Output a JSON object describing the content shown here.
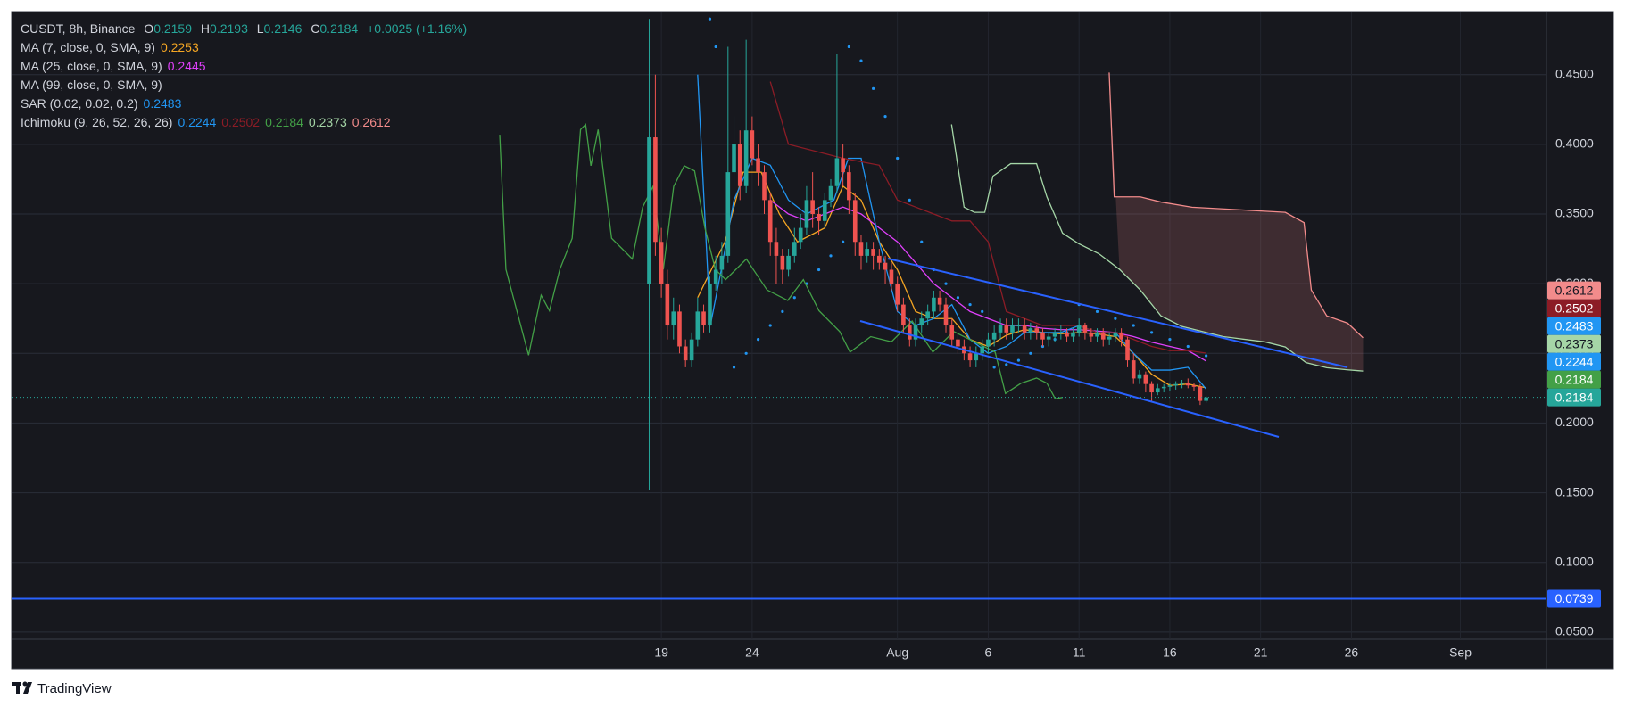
{
  "chart_data": {
    "type": "candlestick",
    "title": "CUSDT, 8h, Binance",
    "ohlc_labels": [
      "O",
      "H",
      "L",
      "C"
    ],
    "change": "+0.0025 (+1.16%)",
    "up_color": "#26a69a",
    "down_color": "#ef5350",
    "candles": {
      "x": [
        -0.67,
        -0.33,
        0,
        0.33,
        0.67,
        1,
        1.33,
        1.67,
        2,
        2.33,
        2.67,
        3,
        3.33,
        3.67,
        4,
        4.33,
        4.67,
        5,
        5.33,
        5.67,
        6,
        6.33,
        6.67,
        7,
        7.33,
        7.67,
        8,
        8.33,
        8.67,
        9,
        9.33,
        9.67,
        10,
        10.33,
        10.67,
        11,
        11.33,
        11.67,
        12,
        12.33,
        12.67,
        13,
        13.33,
        13.67,
        14,
        14.33,
        14.67,
        15,
        15.33,
        15.67,
        16,
        16.33,
        16.67,
        17,
        17.33,
        17.67,
        18,
        18.33,
        18.67,
        19,
        19.33,
        19.67,
        20,
        20.33,
        20.67,
        21,
        21.33,
        21.67,
        22,
        22.33,
        22.67,
        23,
        23.33,
        23.67,
        24,
        24.33,
        24.67,
        25,
        25.33,
        25.67,
        26,
        26.33,
        26.67,
        27,
        27.33,
        27.67,
        28,
        28.33,
        28.67,
        29,
        29.33,
        29.67,
        30
      ],
      "open": [
        0.3,
        0.405,
        0.33,
        0.3,
        0.27,
        0.28,
        0.255,
        0.245,
        0.26,
        0.28,
        0.27,
        0.3,
        0.31,
        0.32,
        0.38,
        0.4,
        0.37,
        0.41,
        0.39,
        0.38,
        0.36,
        0.33,
        0.32,
        0.31,
        0.32,
        0.33,
        0.34,
        0.36,
        0.35,
        0.345,
        0.36,
        0.37,
        0.39,
        0.38,
        0.36,
        0.33,
        0.32,
        0.325,
        0.32,
        0.315,
        0.31,
        0.3,
        0.285,
        0.27,
        0.26,
        0.27,
        0.275,
        0.28,
        0.29,
        0.285,
        0.27,
        0.26,
        0.255,
        0.25,
        0.245,
        0.25,
        0.255,
        0.26,
        0.265,
        0.27,
        0.265,
        0.27,
        0.27,
        0.265,
        0.268,
        0.265,
        0.26,
        0.262,
        0.265,
        0.265,
        0.262,
        0.265,
        0.27,
        0.265,
        0.262,
        0.265,
        0.26,
        0.262,
        0.265,
        0.26,
        0.245,
        0.232,
        0.235,
        0.228,
        0.222,
        0.225,
        0.226,
        0.227,
        0.228,
        0.229,
        0.227,
        0.226,
        0.2159
      ],
      "high": [
        0.49,
        0.45,
        0.34,
        0.31,
        0.29,
        0.285,
        0.26,
        0.265,
        0.29,
        0.285,
        0.305,
        0.32,
        0.33,
        0.47,
        0.42,
        0.41,
        0.475,
        0.42,
        0.4,
        0.385,
        0.365,
        0.34,
        0.325,
        0.325,
        0.34,
        0.35,
        0.37,
        0.38,
        0.355,
        0.365,
        0.375,
        0.465,
        0.4,
        0.385,
        0.365,
        0.335,
        0.33,
        0.33,
        0.325,
        0.32,
        0.315,
        0.305,
        0.29,
        0.275,
        0.275,
        0.28,
        0.285,
        0.295,
        0.295,
        0.29,
        0.275,
        0.265,
        0.26,
        0.255,
        0.255,
        0.26,
        0.265,
        0.27,
        0.275,
        0.275,
        0.275,
        0.275,
        0.275,
        0.272,
        0.27,
        0.268,
        0.265,
        0.268,
        0.27,
        0.268,
        0.268,
        0.275,
        0.272,
        0.268,
        0.268,
        0.268,
        0.265,
        0.268,
        0.268,
        0.262,
        0.25,
        0.238,
        0.237,
        0.23,
        0.228,
        0.228,
        0.229,
        0.23,
        0.231,
        0.232,
        0.229,
        0.228,
        0.2193
      ],
      "low": [
        0.152,
        0.32,
        0.29,
        0.26,
        0.26,
        0.25,
        0.24,
        0.24,
        0.255,
        0.265,
        0.265,
        0.295,
        0.3,
        0.315,
        0.37,
        0.36,
        0.365,
        0.385,
        0.37,
        0.35,
        0.32,
        0.3,
        0.3,
        0.305,
        0.315,
        0.325,
        0.335,
        0.34,
        0.335,
        0.34,
        0.355,
        0.365,
        0.37,
        0.35,
        0.32,
        0.31,
        0.315,
        0.31,
        0.31,
        0.3,
        0.295,
        0.28,
        0.265,
        0.255,
        0.255,
        0.265,
        0.27,
        0.275,
        0.28,
        0.265,
        0.255,
        0.25,
        0.245,
        0.24,
        0.24,
        0.245,
        0.25,
        0.255,
        0.26,
        0.26,
        0.26,
        0.265,
        0.26,
        0.26,
        0.26,
        0.255,
        0.255,
        0.258,
        0.26,
        0.258,
        0.258,
        0.262,
        0.26,
        0.258,
        0.258,
        0.255,
        0.256,
        0.258,
        0.255,
        0.24,
        0.228,
        0.228,
        0.222,
        0.215,
        0.22,
        0.222,
        0.223,
        0.224,
        0.225,
        0.225,
        0.223,
        0.213,
        0.2146
      ],
      "close": [
        0.405,
        0.33,
        0.3,
        0.27,
        0.28,
        0.255,
        0.245,
        0.26,
        0.28,
        0.27,
        0.3,
        0.31,
        0.32,
        0.38,
        0.4,
        0.37,
        0.41,
        0.39,
        0.38,
        0.36,
        0.33,
        0.32,
        0.31,
        0.32,
        0.33,
        0.34,
        0.36,
        0.35,
        0.345,
        0.36,
        0.37,
        0.39,
        0.38,
        0.36,
        0.33,
        0.32,
        0.325,
        0.32,
        0.315,
        0.31,
        0.3,
        0.285,
        0.27,
        0.26,
        0.27,
        0.275,
        0.28,
        0.29,
        0.285,
        0.27,
        0.26,
        0.255,
        0.25,
        0.245,
        0.25,
        0.255,
        0.26,
        0.265,
        0.27,
        0.265,
        0.27,
        0.27,
        0.265,
        0.268,
        0.265,
        0.26,
        0.262,
        0.265,
        0.265,
        0.262,
        0.265,
        0.27,
        0.265,
        0.262,
        0.265,
        0.26,
        0.262,
        0.265,
        0.26,
        0.245,
        0.232,
        0.235,
        0.228,
        0.222,
        0.225,
        0.226,
        0.227,
        0.228,
        0.229,
        0.227,
        0.226,
        0.2159,
        0.2184
      ]
    },
    "indicators": [
      {
        "name": "MA (7, close, 0, SMA, 9)",
        "outputs": [
          {
            "value": 0.2253,
            "color": "#f5a623",
            "x": [
              2,
              3.5,
              4.5,
              5.5,
              6.5,
              7.5,
              9,
              10,
              11,
              12,
              13,
              14,
              15,
              16,
              17,
              18,
              19,
              20,
              21,
              22,
              23,
              24,
              25,
              26,
              27,
              28,
              29,
              30
            ],
            "values": [
              0.29,
              0.33,
              0.38,
              0.38,
              0.35,
              0.33,
              0.34,
              0.37,
              0.36,
              0.33,
              0.31,
              0.28,
              0.275,
              0.275,
              0.26,
              0.255,
              0.263,
              0.267,
              0.265,
              0.264,
              0.265,
              0.264,
              0.262,
              0.25,
              0.235,
              0.227,
              0.228,
              0.2253
            ]
          }
        ]
      },
      {
        "name": "MA (25, close, 0, SMA, 9)",
        "outputs": [
          {
            "value": 0.2445,
            "color": "#e040fb",
            "x": [
              6,
              7,
              8,
              9,
              10,
              11,
              12,
              13,
              14,
              15,
              16,
              17,
              18,
              19,
              20,
              21,
              22,
              23,
              24,
              25,
              26,
              27,
              28,
              29,
              30
            ],
            "values": [
              0.36,
              0.35,
              0.345,
              0.35,
              0.355,
              0.35,
              0.34,
              0.33,
              0.315,
              0.3,
              0.29,
              0.28,
              0.275,
              0.27,
              0.27,
              0.268,
              0.267,
              0.267,
              0.266,
              0.265,
              0.262,
              0.258,
              0.255,
              0.252,
              0.2445
            ]
          }
        ]
      },
      {
        "name": "MA (99, close, 0, SMA, 9)",
        "outputs": []
      },
      {
        "name": "SAR (0.02, 0.02, 0.2)",
        "outputs": [
          {
            "value": 0.2483,
            "color": "#2196f3",
            "style": "dots",
            "price_label": true,
            "x": [
              2.67,
              3,
              4,
              4.67,
              5.33,
              6,
              6.67,
              7.33,
              8,
              8.67,
              9.33,
              10,
              10.33,
              11,
              11.67,
              12.33,
              13,
              13.67,
              14.33,
              15,
              15.67,
              16.33,
              17,
              17.67,
              18.33,
              19,
              19.67,
              20.33,
              21,
              21.67,
              22.33,
              23,
              24,
              25,
              26,
              27,
              28,
              29,
              30
            ],
            "values": [
              0.49,
              0.47,
              0.24,
              0.25,
              0.26,
              0.27,
              0.28,
              0.29,
              0.3,
              0.31,
              0.32,
              0.33,
              0.47,
              0.46,
              0.44,
              0.42,
              0.39,
              0.36,
              0.33,
              0.31,
              0.3,
              0.29,
              0.285,
              0.28,
              0.24,
              0.242,
              0.245,
              0.25,
              0.255,
              0.26,
              0.265,
              0.285,
              0.28,
              0.275,
              0.27,
              0.265,
              0.26,
              0.255,
              0.2483
            ]
          }
        ]
      },
      {
        "name": "Ichimoku (9, 26, 52, 26, 26)",
        "outputs": [
          {
            "value": 0.2244,
            "color": "#2196f3",
            "price_label": true,
            "x": [
              2,
              2.7,
              3.3,
              4,
              5,
              6,
              7,
              8,
              9.5,
              10.3,
              11,
              12,
              13,
              14,
              15,
              16,
              17,
              18,
              19,
              20,
              21,
              22,
              23,
              24,
              25,
              26,
              27,
              28,
              29,
              30
            ],
            "values": [
              0.45,
              0.27,
              0.31,
              0.36,
              0.39,
              0.385,
              0.36,
              0.35,
              0.36,
              0.39,
              0.39,
              0.33,
              0.28,
              0.27,
              0.275,
              0.285,
              0.26,
              0.25,
              0.255,
              0.265,
              0.265,
              0.265,
              0.27,
              0.265,
              0.265,
              0.25,
              0.238,
              0.238,
              0.24,
              0.2244
            ]
          },
          {
            "value": 0.2502,
            "color": "#8c1c26",
            "price_label": true,
            "x": [
              6,
              7,
              10,
              12,
              13,
              14,
              15,
              16,
              17,
              18,
              19,
              20,
              21,
              22,
              23,
              24,
              25,
              26,
              27,
              28,
              29,
              30
            ],
            "values": [
              0.445,
              0.4,
              0.39,
              0.385,
              0.36,
              0.355,
              0.35,
              0.345,
              0.345,
              0.33,
              0.28,
              0.275,
              0.27,
              0.27,
              0.27,
              0.265,
              0.265,
              0.26,
              0.255,
              0.252,
              0.252,
              0.2502
            ]
          },
          {
            "value": 0.2184,
            "color": "#43a047",
            "price_label": true,
            "x": [
              -8.9,
              -8.56,
              -7.31,
              -6.62,
              -6.16,
              -5.59,
              -4.91,
              -4.45,
              -4.17,
              -3.88,
              -3.48,
              -2.74,
              -2.17,
              -1.6,
              -1.03,
              -0.46,
              0.11,
              0.68,
              1.26,
              1.83,
              2.4,
              2.97,
              3.54,
              4.68,
              5.82,
              6.96,
              7.82,
              8.68,
              9.82,
              10.39,
              11.53,
              12.67,
              13.81,
              14.95,
              16.1,
              17.24,
              18.38,
              18.95,
              19.81,
              20.66,
              21.23,
              21.69,
              22.09
            ],
            "values": [
              0.4069,
              0.3103,
              0.2487,
              0.2917,
              0.2806,
              0.3103,
              0.3326,
              0.4106,
              0.4143,
              0.3846,
              0.4106,
              0.3326,
              0.3252,
              0.3177,
              0.3549,
              0.3698,
              0.3103,
              0.3698,
              0.3846,
              0.3809,
              0.34,
              0.3103,
              0.3029,
              0.3177,
              0.2955,
              0.288,
              0.3029,
              0.2806,
              0.2657,
              0.2509,
              0.262,
              0.2583,
              0.2732,
              0.2509,
              0.2657,
              0.2583,
              0.2509,
              0.2212,
              0.2286,
              0.2323,
              0.2286,
              0.2174,
              0.2184
            ]
          },
          {
            "value": 0.2373,
            "color": "#a5d6a7",
            "price_label": true,
            "x": [
              15.98,
              16.67,
              17.24,
              17.81,
              18.26,
              19.24,
              20.66,
              21.23,
              22.09,
              22.95,
              24.09,
              25.23,
              26.37,
              27.51,
              28.65,
              29.79,
              30.94,
              33.22,
              34.36,
              35.5,
              36.64,
              37.79,
              38.64
            ],
            "values": [
              0.4143,
              0.3549,
              0.3512,
              0.3512,
              0.3772,
              0.3861,
              0.3861,
              0.3623,
              0.3363,
              0.3289,
              0.3215,
              0.3103,
              0.2955,
              0.2769,
              0.2694,
              0.2657,
              0.262,
              0.2583,
              0.2546,
              0.2434,
              0.2397,
              0.2382,
              0.2373
            ]
          },
          {
            "value": 0.2612,
            "color": "#f28b8b",
            "price_label": true,
            "cloud": true,
            "x": [
              24.66,
              24.94,
              26.37,
              27.51,
              29.22,
              34.36,
              35.39,
              35.79,
              36.64,
              37.79,
              38.64
            ],
            "values": [
              0.4515,
              0.3623,
              0.3623,
              0.3586,
              0.3549,
              0.3512,
              0.3438,
              0.2955,
              0.2769,
              0.2717,
              0.2612
            ]
          }
        ]
      }
    ],
    "hline": {
      "value": 0.0739,
      "color": "#2962ff"
    },
    "xlim": [
      -35.73,
      48.74
    ],
    "ylim": [
      0.0448,
      0.4946
    ],
    "xticks": [
      {
        "value": 0,
        "label": "19"
      },
      {
        "value": 5,
        "label": "24"
      },
      {
        "value": 13,
        "label": "Aug"
      },
      {
        "value": 18,
        "label": "6"
      },
      {
        "value": 23,
        "label": "11"
      },
      {
        "value": 28,
        "label": "16"
      },
      {
        "value": 33,
        "label": "21"
      },
      {
        "value": 38,
        "label": "26"
      },
      {
        "value": 44,
        "label": "Sep"
      }
    ],
    "yticks": [
      {
        "value": 0.05,
        "label": "0.0500"
      },
      {
        "value": 0.1,
        "label": "0.1000"
      },
      {
        "value": 0.15,
        "label": "0.1500"
      },
      {
        "value": 0.2,
        "label": "0.2000"
      },
      {
        "value": 0.25,
        "label": "0.2500"
      },
      {
        "value": 0.3,
        "label": "0.3000"
      },
      {
        "value": 0.35,
        "label": "0.3500"
      },
      {
        "value": 0.4,
        "label": "0.4000"
      },
      {
        "value": 0.45,
        "label": "0.4500"
      }
    ],
    "grid": true,
    "footer": "TradingView"
  }
}
